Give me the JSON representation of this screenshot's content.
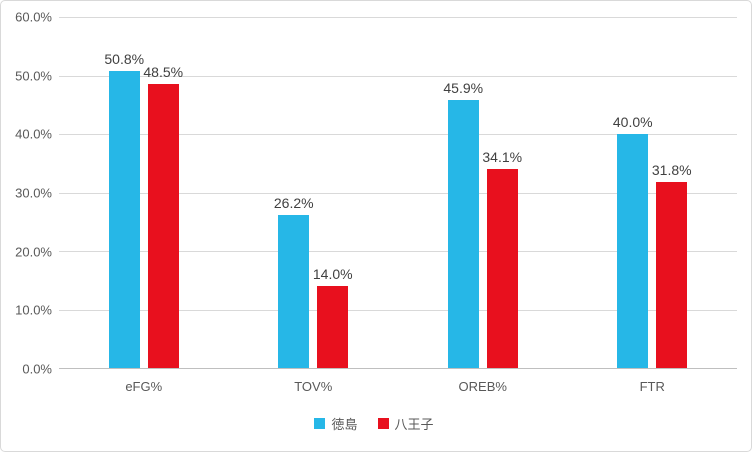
{
  "chart_data": {
    "type": "bar",
    "title": "",
    "categories": [
      "eFG%",
      "TOV%",
      "OREB%",
      "FTR"
    ],
    "series": [
      {
        "name": "徳島",
        "color": "#26b7e7",
        "values": [
          50.8,
          26.2,
          45.9,
          40.0
        ],
        "labels": [
          "50.8%",
          "26.2%",
          "45.9%",
          "40.0%"
        ]
      },
      {
        "name": "八王子",
        "color": "#e8101e",
        "values": [
          48.5,
          14.0,
          34.1,
          31.8
        ],
        "labels": [
          "48.5%",
          "14.0%",
          "34.1%",
          "31.8%"
        ]
      }
    ],
    "ylim": [
      0,
      60
    ],
    "ytick_step": 10,
    "ytick_labels": [
      "0.0%",
      "10.0%",
      "20.0%",
      "30.0%",
      "40.0%",
      "50.0%",
      "60.0%"
    ],
    "grid": true,
    "legend_position": "bottom",
    "colors": {
      "gridline": "#d9d9d9",
      "axis_line": "#bfbfbf",
      "tick_text": "#595959",
      "data_label_text": "#404040",
      "chart_border": "#d9d9d9"
    }
  }
}
